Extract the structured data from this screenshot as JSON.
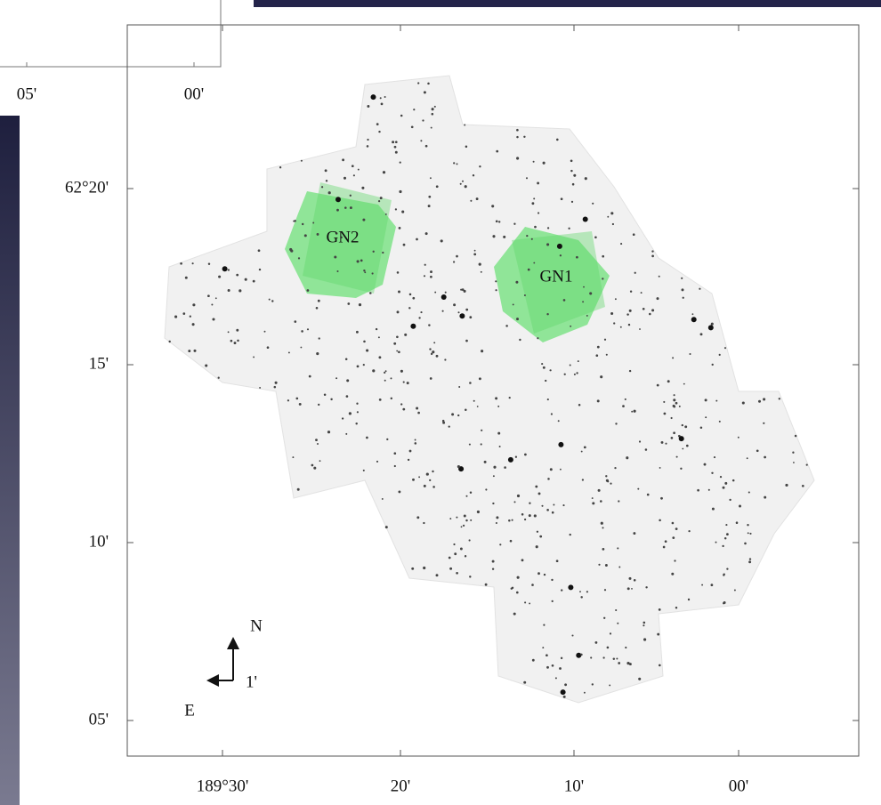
{
  "inset_axis": {
    "x_tick_labels": [
      "05'",
      "00'"
    ]
  },
  "figure": {
    "y_tick_labels": [
      "62°20'",
      "15'",
      "10'",
      "05'"
    ],
    "x_tick_labels": [
      "189°30'",
      "20'",
      "10'",
      "00'"
    ],
    "fields": [
      "GN2",
      "GN1"
    ],
    "compass": {
      "north": "N",
      "east": "E",
      "scale": "1'"
    }
  }
}
